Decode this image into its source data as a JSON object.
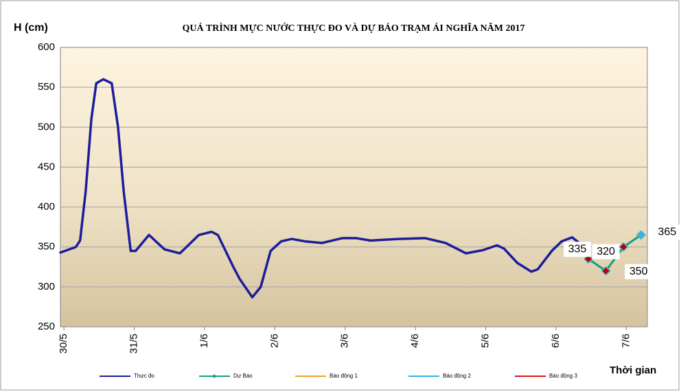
{
  "chart_data": {
    "type": "line",
    "title": "QUÁ TRÌNH MỰC NƯỚC THỰC ĐO VÀ DỰ BÁO TRẠM ÁI NGHĨA NĂM 2017",
    "ylabel": "H (cm)",
    "xlabel": "Thời gian",
    "xlim": [
      -0.05,
      8.3
    ],
    "ylim": [
      250,
      600
    ],
    "yticks": [
      250,
      300,
      350,
      400,
      450,
      500,
      550,
      600
    ],
    "xticks": [
      {
        "value": 0,
        "label": "30/5"
      },
      {
        "value": 1,
        "label": "31/5"
      },
      {
        "value": 2,
        "label": "1/6"
      },
      {
        "value": 3,
        "label": "2/6"
      },
      {
        "value": 4,
        "label": "3/6"
      },
      {
        "value": 5,
        "label": "4/6"
      },
      {
        "value": 6,
        "label": "5/6"
      },
      {
        "value": 7,
        "label": "6/6"
      },
      {
        "value": 8,
        "label": "7/6"
      }
    ],
    "grid": true,
    "legend": "bottom",
    "series": [
      {
        "name": "Thực đo",
        "color": "#1c1c9c",
        "x": [
          -0.05,
          0.17,
          0.23,
          0.31,
          0.39,
          0.46,
          0.56,
          0.68,
          0.77,
          0.85,
          0.95,
          1.02,
          1.21,
          1.43,
          1.65,
          1.92,
          2.1,
          2.19,
          2.41,
          2.5,
          2.68,
          2.8,
          2.94,
          3.09,
          3.24,
          3.43,
          3.67,
          3.96,
          4.16,
          4.36,
          4.75,
          5.14,
          5.43,
          5.72,
          5.96,
          6.16,
          6.26,
          6.45,
          6.65,
          6.74,
          6.94,
          7.08,
          7.23,
          7.33,
          7.46
        ],
        "values": [
          343,
          350,
          358,
          420,
          510,
          555,
          560,
          555,
          500,
          420,
          345,
          345,
          365,
          347,
          342,
          365,
          369,
          365,
          325,
          310,
          287,
          300,
          345,
          357,
          360,
          357,
          355,
          361,
          361,
          358,
          360,
          361,
          355,
          342,
          346,
          352,
          348,
          330,
          319,
          322,
          345,
          357,
          362,
          355,
          337
        ]
      },
      {
        "name": "Dự Báo",
        "color": "#10a080",
        "x": [
          7.46,
          7.71,
          7.96,
          8.21
        ],
        "values": [
          335,
          320,
          350,
          365
        ],
        "marker_colors": [
          "#c00000",
          "#c00000",
          "#c00000",
          "#40b0e0"
        ]
      },
      {
        "name": "Báo động 1",
        "color": "#f0a020"
      },
      {
        "name": "Báo động 2",
        "color": "#30b0e8"
      },
      {
        "name": "Báo động 3",
        "color": "#e01010"
      }
    ]
  }
}
